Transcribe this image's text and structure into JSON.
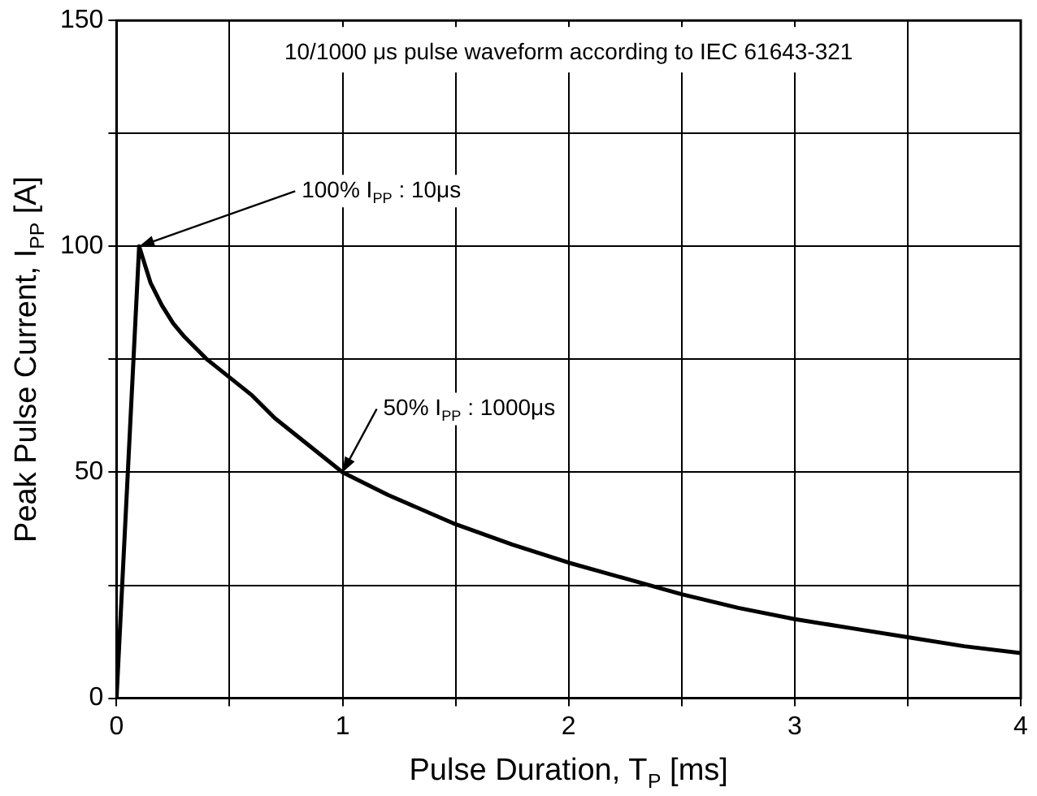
{
  "chart_data": {
    "type": "line",
    "xlabel": "Pulse Duration, T$_{P}$ [ms]",
    "ylabel": "Peak Pulse Current, I$_{PP}$ [A]",
    "series": [
      {
        "color": "#000000",
        "x": [
          0,
          0.1,
          0.15,
          0.2,
          0.25,
          0.3,
          0.4,
          0.5,
          0.6,
          0.7,
          0.8,
          0.9,
          1,
          1.2,
          1.5,
          1.75,
          2,
          2.25,
          2.5,
          2.75,
          3,
          3.25,
          3.5,
          3.75,
          4
        ],
        "values": [
          0,
          100,
          92,
          87,
          83,
          80,
          75,
          71,
          67,
          62,
          58,
          54,
          50,
          45,
          38.5,
          34,
          30,
          26.5,
          23,
          20,
          17.5,
          15.5,
          13.5,
          11.5,
          10
        ]
      }
    ],
    "xlim": [
      0,
      4
    ],
    "xticks": [
      0,
      {
        "value": 0.5,
        "label": null
      },
      1,
      {
        "value": 1.5,
        "label": null
      },
      2,
      {
        "value": 2.5,
        "label": null
      },
      3,
      {
        "value": 3.5,
        "label": null
      },
      4
    ],
    "ylim": [
      0,
      150
    ],
    "yticks": [
      0,
      {
        "value": 25,
        "label": null
      },
      50,
      {
        "value": 75,
        "label": null
      },
      100,
      {
        "value": 125,
        "label": null
      },
      150
    ],
    "grid": true,
    "legend": false,
    "marker": "none",
    "line_style": "solid",
    "annotations": [
      "10/1000 μs pulse waveform according to IEC 61643-321",
      {
        "text": "100% I$_{PP}$ : 10μs",
        "x": 0.1,
        "y": 100
      },
      {
        "text": "50% I$_{PP}$ : 1000μs",
        "x": 1,
        "y": 50
      }
    ]
  }
}
